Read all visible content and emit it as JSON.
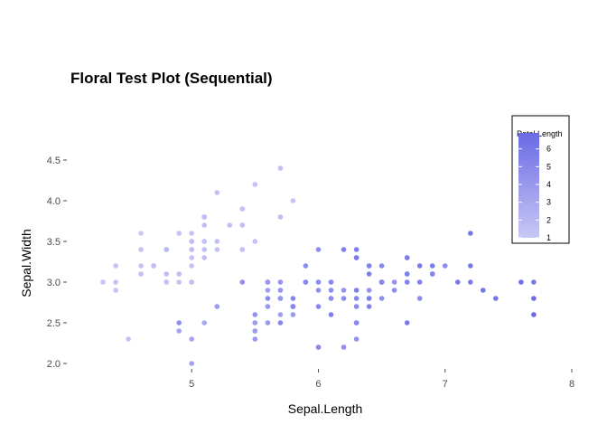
{
  "chart_data": {
    "type": "scatter",
    "title": "Floral Test Plot (Sequential)",
    "xlabel": "Sepal.Length",
    "ylabel": "Sepal.Width",
    "xlim": [
      4.2,
      8.0
    ],
    "ylim": [
      1.9,
      4.5
    ],
    "x_ticks": [
      5,
      6,
      7,
      8
    ],
    "x_tick_labels": [
      "5",
      "6",
      "7",
      "8"
    ],
    "y_ticks": [
      2.0,
      2.5,
      3.0,
      3.5,
      4.0,
      4.5
    ],
    "y_tick_labels": [
      "2.0",
      "2.5",
      "3.0",
      "3.5",
      "4.0",
      "4.5"
    ],
    "grid": false,
    "legend": {
      "title": "Petal.Length",
      "placement": "top-right",
      "labels": [
        "6",
        "5",
        "4",
        "3",
        "2",
        "1"
      ],
      "values": [
        6,
        5,
        4,
        3,
        2,
        1
      ],
      "range": [
        1.0,
        6.9
      ],
      "color_low": "#c8c8f4",
      "color_high": "#6a6ae6"
    },
    "color_variable": "Petal.Length",
    "points": [
      [
        5.1,
        3.5,
        1.4
      ],
      [
        4.9,
        3.0,
        1.4
      ],
      [
        4.7,
        3.2,
        1.3
      ],
      [
        4.6,
        3.1,
        1.5
      ],
      [
        5.0,
        3.6,
        1.4
      ],
      [
        5.4,
        3.9,
        1.7
      ],
      [
        4.6,
        3.4,
        1.4
      ],
      [
        5.0,
        3.4,
        1.5
      ],
      [
        4.4,
        2.9,
        1.4
      ],
      [
        4.9,
        3.1,
        1.5
      ],
      [
        5.4,
        3.7,
        1.5
      ],
      [
        4.8,
        3.4,
        1.6
      ],
      [
        4.8,
        3.0,
        1.4
      ],
      [
        4.3,
        3.0,
        1.1
      ],
      [
        5.8,
        4.0,
        1.2
      ],
      [
        5.7,
        4.4,
        1.5
      ],
      [
        5.4,
        3.9,
        1.3
      ],
      [
        5.1,
        3.5,
        1.4
      ],
      [
        5.7,
        3.8,
        1.7
      ],
      [
        5.1,
        3.8,
        1.5
      ],
      [
        5.4,
        3.4,
        1.7
      ],
      [
        5.1,
        3.7,
        1.5
      ],
      [
        4.6,
        3.6,
        1.0
      ],
      [
        5.1,
        3.3,
        1.7
      ],
      [
        4.8,
        3.4,
        1.9
      ],
      [
        5.0,
        3.0,
        1.6
      ],
      [
        5.0,
        3.4,
        1.6
      ],
      [
        5.2,
        3.5,
        1.5
      ],
      [
        5.2,
        3.4,
        1.4
      ],
      [
        4.7,
        3.2,
        1.6
      ],
      [
        4.8,
        3.1,
        1.6
      ],
      [
        5.4,
        3.4,
        1.5
      ],
      [
        5.2,
        4.1,
        1.5
      ],
      [
        5.5,
        4.2,
        1.4
      ],
      [
        4.9,
        3.1,
        1.5
      ],
      [
        5.0,
        3.2,
        1.2
      ],
      [
        5.5,
        3.5,
        1.3
      ],
      [
        4.9,
        3.6,
        1.4
      ],
      [
        4.4,
        3.0,
        1.3
      ],
      [
        5.1,
        3.4,
        1.5
      ],
      [
        5.0,
        3.5,
        1.3
      ],
      [
        4.5,
        2.3,
        1.3
      ],
      [
        4.4,
        3.2,
        1.3
      ],
      [
        5.0,
        3.5,
        1.6
      ],
      [
        5.1,
        3.8,
        1.9
      ],
      [
        4.8,
        3.0,
        1.4
      ],
      [
        5.1,
        3.8,
        1.6
      ],
      [
        4.6,
        3.2,
        1.4
      ],
      [
        5.3,
        3.7,
        1.5
      ],
      [
        5.0,
        3.3,
        1.4
      ],
      [
        7.0,
        3.2,
        4.7
      ],
      [
        6.4,
        3.2,
        4.5
      ],
      [
        6.9,
        3.1,
        4.9
      ],
      [
        5.5,
        2.3,
        4.0
      ],
      [
        6.5,
        2.8,
        4.6
      ],
      [
        5.7,
        2.8,
        4.5
      ],
      [
        6.3,
        3.3,
        4.7
      ],
      [
        4.9,
        2.4,
        3.3
      ],
      [
        6.6,
        2.9,
        4.6
      ],
      [
        5.2,
        2.7,
        3.9
      ],
      [
        5.0,
        2.0,
        3.5
      ],
      [
        5.9,
        3.0,
        4.2
      ],
      [
        6.0,
        2.2,
        4.0
      ],
      [
        6.1,
        2.9,
        4.7
      ],
      [
        5.6,
        2.9,
        3.6
      ],
      [
        6.7,
        3.1,
        4.4
      ],
      [
        5.6,
        3.0,
        4.5
      ],
      [
        5.8,
        2.7,
        4.1
      ],
      [
        6.2,
        2.2,
        4.5
      ],
      [
        5.6,
        2.5,
        3.9
      ],
      [
        5.9,
        3.2,
        4.8
      ],
      [
        6.1,
        2.8,
        4.0
      ],
      [
        6.3,
        2.5,
        4.9
      ],
      [
        6.1,
        2.8,
        4.7
      ],
      [
        6.4,
        2.9,
        4.3
      ],
      [
        6.6,
        3.0,
        4.4
      ],
      [
        6.8,
        2.8,
        4.8
      ],
      [
        6.7,
        3.0,
        5.0
      ],
      [
        6.0,
        2.9,
        4.5
      ],
      [
        5.7,
        2.6,
        3.5
      ],
      [
        5.5,
        2.4,
        3.8
      ],
      [
        5.5,
        2.4,
        3.7
      ],
      [
        5.8,
        2.7,
        3.9
      ],
      [
        6.0,
        2.7,
        5.1
      ],
      [
        5.4,
        3.0,
        4.5
      ],
      [
        6.0,
        3.4,
        4.5
      ],
      [
        6.7,
        3.1,
        4.7
      ],
      [
        6.3,
        2.3,
        4.4
      ],
      [
        5.6,
        3.0,
        4.1
      ],
      [
        5.5,
        2.5,
        4.0
      ],
      [
        5.5,
        2.6,
        4.4
      ],
      [
        6.1,
        3.0,
        4.6
      ],
      [
        5.8,
        2.6,
        4.0
      ],
      [
        5.0,
        2.3,
        3.3
      ],
      [
        5.6,
        2.7,
        4.2
      ],
      [
        5.7,
        3.0,
        4.2
      ],
      [
        5.7,
        2.9,
        4.2
      ],
      [
        6.2,
        2.9,
        4.3
      ],
      [
        5.1,
        2.5,
        3.0
      ],
      [
        5.7,
        2.8,
        4.1
      ],
      [
        6.3,
        3.3,
        6.0
      ],
      [
        5.8,
        2.7,
        5.1
      ],
      [
        7.1,
        3.0,
        5.9
      ],
      [
        6.3,
        2.9,
        5.6
      ],
      [
        6.5,
        3.0,
        5.8
      ],
      [
        7.6,
        3.0,
        6.6
      ],
      [
        4.9,
        2.5,
        4.5
      ],
      [
        7.3,
        2.9,
        6.3
      ],
      [
        6.7,
        2.5,
        5.8
      ],
      [
        7.2,
        3.6,
        6.1
      ],
      [
        6.5,
        3.2,
        5.1
      ],
      [
        6.4,
        2.7,
        5.3
      ],
      [
        6.8,
        3.0,
        5.5
      ],
      [
        5.7,
        2.5,
        5.0
      ],
      [
        5.8,
        2.8,
        5.1
      ],
      [
        6.4,
        3.2,
        5.3
      ],
      [
        6.5,
        3.0,
        5.5
      ],
      [
        7.7,
        3.8,
        6.7
      ],
      [
        7.7,
        2.6,
        6.9
      ],
      [
        6.0,
        2.2,
        5.0
      ],
      [
        6.9,
        3.2,
        5.7
      ],
      [
        5.6,
        2.8,
        4.9
      ],
      [
        7.7,
        2.8,
        6.7
      ],
      [
        6.3,
        2.7,
        4.9
      ],
      [
        6.7,
        3.3,
        5.7
      ],
      [
        7.2,
        3.2,
        6.0
      ],
      [
        6.2,
        2.8,
        4.8
      ],
      [
        6.1,
        3.0,
        4.9
      ],
      [
        6.4,
        2.8,
        5.6
      ],
      [
        7.2,
        3.0,
        5.8
      ],
      [
        7.4,
        2.8,
        6.1
      ],
      [
        7.9,
        3.8,
        6.4
      ],
      [
        6.4,
        2.8,
        5.6
      ],
      [
        6.3,
        2.8,
        5.1
      ],
      [
        6.1,
        2.6,
        5.6
      ],
      [
        7.7,
        3.0,
        6.1
      ],
      [
        6.3,
        3.4,
        5.6
      ],
      [
        6.4,
        3.1,
        5.5
      ],
      [
        6.0,
        3.0,
        4.8
      ],
      [
        6.9,
        3.1,
        5.4
      ],
      [
        6.7,
        3.1,
        5.6
      ],
      [
        6.9,
        3.1,
        5.1
      ],
      [
        5.8,
        2.7,
        5.1
      ],
      [
        6.8,
        3.2,
        5.9
      ],
      [
        6.7,
        3.3,
        5.7
      ],
      [
        6.7,
        3.0,
        5.2
      ],
      [
        6.3,
        2.5,
        5.0
      ],
      [
        6.5,
        3.0,
        5.2
      ],
      [
        6.2,
        3.4,
        5.4
      ],
      [
        5.9,
        3.0,
        5.1
      ]
    ]
  }
}
